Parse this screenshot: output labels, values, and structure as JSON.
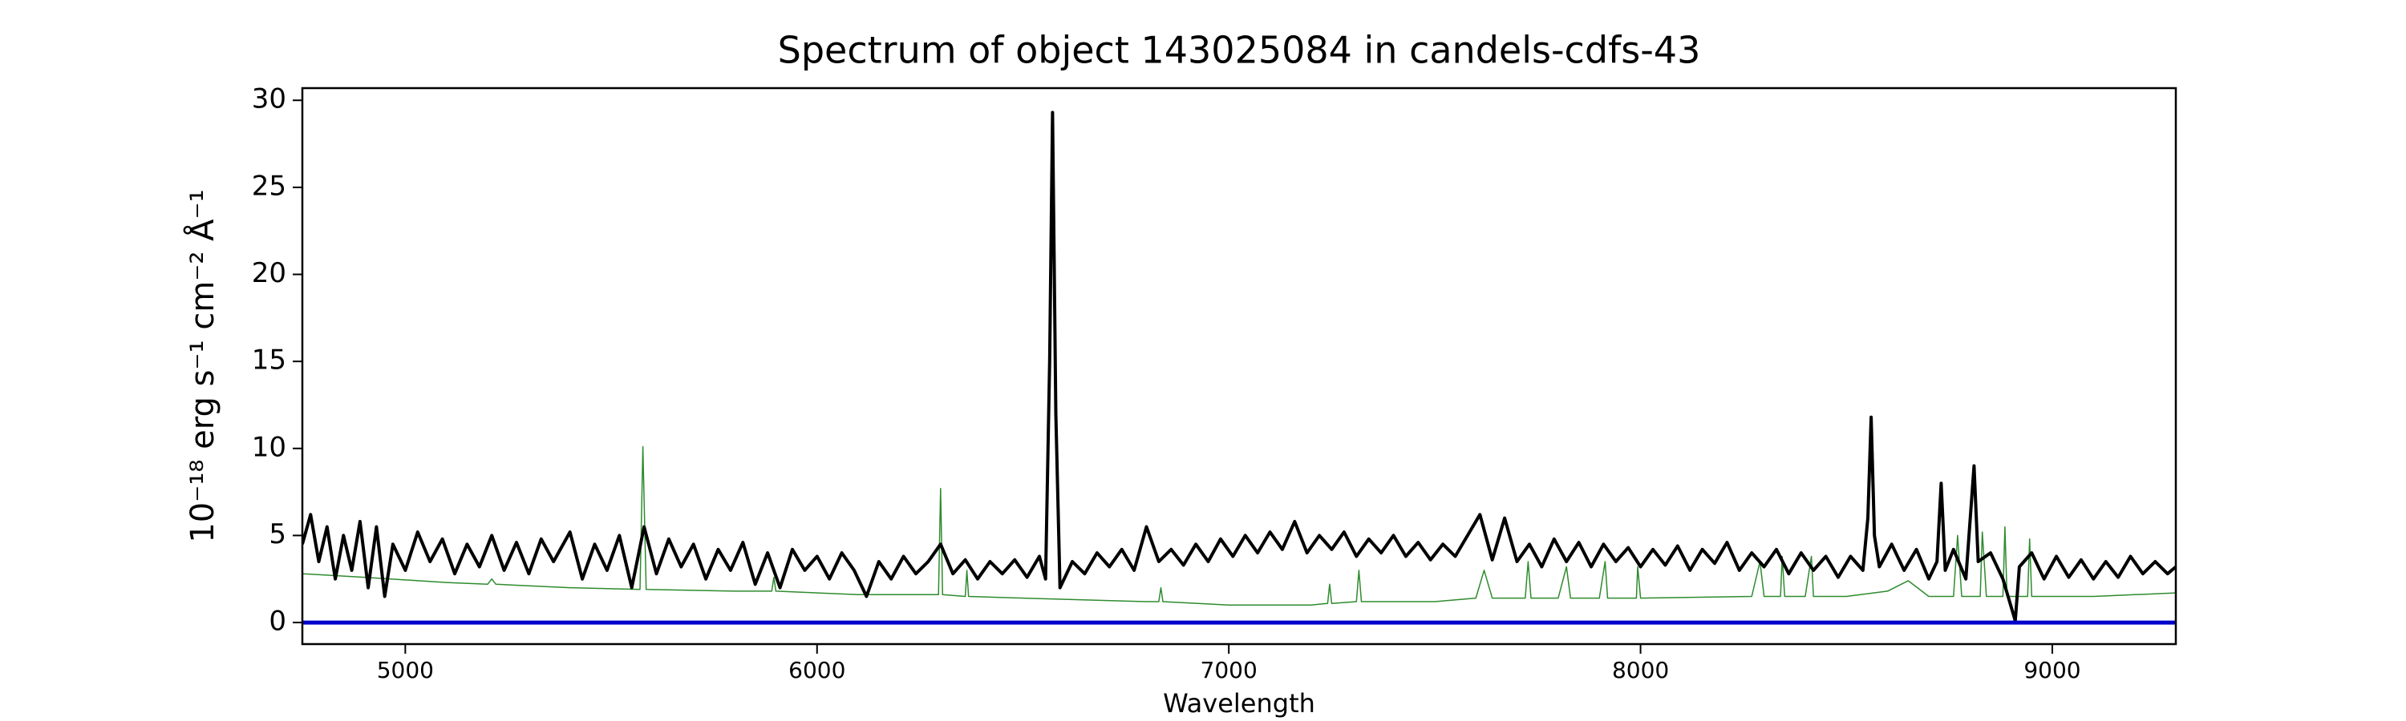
{
  "chart_data": {
    "type": "line",
    "title": "Spectrum of object 143025084 in candels-cdfs-43",
    "x_label": "Wavelength",
    "y_label": "10⁻¹⁸ erg s⁻¹ cm⁻² Å⁻¹",
    "xlim": [
      4750,
      9300
    ],
    "ylim": [
      -1.24,
      30.7
    ],
    "xticks": [
      5000,
      6000,
      7000,
      8000,
      9000
    ],
    "yticks": [
      0,
      5,
      10,
      15,
      20,
      25,
      30
    ],
    "grid": false,
    "series": [
      {
        "color": "#2e8b2e",
        "width": 1.5,
        "x": [
          4750,
          4900,
          5100,
          5200,
          5210,
          5220,
          5400,
          5570,
          5577,
          5585,
          5800,
          5890,
          5895,
          5900,
          6100,
          6295,
          6300,
          6305,
          6360,
          6364,
          6368,
          6500,
          6800,
          6830,
          6835,
          6840,
          7000,
          7200,
          7240,
          7245,
          7250,
          7310,
          7316,
          7322,
          7500,
          7600,
          7620,
          7640,
          7720,
          7727,
          7734,
          7800,
          7820,
          7830,
          7900,
          7914,
          7920,
          7990,
          7993,
          8000,
          8270,
          8290,
          8300,
          8340,
          8344,
          8350,
          8400,
          8415,
          8420,
          8500,
          8600,
          8650,
          8700,
          8760,
          8770,
          8780,
          8825,
          8830,
          8840,
          8880,
          8885,
          8890,
          8940,
          8945,
          8950,
          9100,
          9300
        ],
        "values": [
          2.8,
          2.6,
          2.3,
          2.2,
          2.5,
          2.2,
          2.0,
          1.9,
          10.1,
          1.9,
          1.8,
          1.8,
          2.6,
          1.8,
          1.6,
          1.6,
          7.7,
          1.6,
          1.5,
          3.0,
          1.5,
          1.4,
          1.2,
          1.2,
          2.0,
          1.2,
          1.0,
          1.0,
          1.1,
          2.2,
          1.1,
          1.2,
          3.0,
          1.2,
          1.2,
          1.4,
          3.0,
          1.4,
          1.4,
          3.5,
          1.4,
          1.4,
          3.2,
          1.4,
          1.4,
          3.5,
          1.4,
          1.4,
          3.2,
          1.4,
          1.5,
          3.5,
          1.5,
          1.5,
          3.8,
          1.5,
          1.5,
          3.8,
          1.5,
          1.5,
          1.8,
          2.4,
          1.5,
          1.5,
          5.0,
          1.5,
          1.5,
          5.2,
          1.5,
          1.5,
          5.5,
          1.5,
          1.5,
          4.8,
          1.5,
          1.5,
          1.7
        ]
      },
      {
        "color": "#000000",
        "width": 4,
        "x": [
          4750,
          4770,
          4790,
          4810,
          4830,
          4850,
          4870,
          4890,
          4910,
          4930,
          4950,
          4970,
          5000,
          5030,
          5060,
          5090,
          5120,
          5150,
          5180,
          5210,
          5240,
          5270,
          5300,
          5330,
          5360,
          5400,
          5430,
          5460,
          5490,
          5520,
          5550,
          5580,
          5610,
          5640,
          5670,
          5700,
          5730,
          5760,
          5790,
          5820,
          5850,
          5880,
          5910,
          5940,
          5970,
          6000,
          6030,
          6060,
          6090,
          6120,
          6150,
          6180,
          6210,
          6240,
          6270,
          6300,
          6330,
          6360,
          6390,
          6420,
          6450,
          6480,
          6510,
          6540,
          6555,
          6565,
          6572,
          6580,
          6590,
          6620,
          6650,
          6680,
          6710,
          6740,
          6770,
          6800,
          6830,
          6860,
          6890,
          6920,
          6950,
          6980,
          7010,
          7040,
          7070,
          7100,
          7130,
          7160,
          7190,
          7220,
          7250,
          7280,
          7310,
          7340,
          7370,
          7400,
          7430,
          7460,
          7490,
          7520,
          7550,
          7580,
          7610,
          7640,
          7670,
          7700,
          7730,
          7760,
          7790,
          7820,
          7850,
          7880,
          7910,
          7940,
          7970,
          8000,
          8030,
          8060,
          8090,
          8120,
          8150,
          8180,
          8210,
          8240,
          8270,
          8300,
          8330,
          8360,
          8390,
          8420,
          8450,
          8480,
          8510,
          8540,
          8552,
          8560,
          8568,
          8580,
          8610,
          8640,
          8670,
          8700,
          8720,
          8730,
          8740,
          8760,
          8790,
          8810,
          8820,
          8850,
          8880,
          8910,
          8920,
          8950,
          8980,
          9010,
          9040,
          9070,
          9100,
          9130,
          9160,
          9190,
          9220,
          9250,
          9280,
          9300
        ],
        "values": [
          4.5,
          6.2,
          3.5,
          5.5,
          2.5,
          5.0,
          3.0,
          5.8,
          2.0,
          5.5,
          1.5,
          4.5,
          3.0,
          5.2,
          3.5,
          4.8,
          2.8,
          4.5,
          3.2,
          5.0,
          3.0,
          4.6,
          2.8,
          4.8,
          3.5,
          5.2,
          2.5,
          4.5,
          3.0,
          5.0,
          2.0,
          5.5,
          2.8,
          4.8,
          3.2,
          4.5,
          2.5,
          4.2,
          3.0,
          4.6,
          2.2,
          4.0,
          2.0,
          4.2,
          3.0,
          3.8,
          2.5,
          4.0,
          3.0,
          1.5,
          3.5,
          2.5,
          3.8,
          2.8,
          3.5,
          4.5,
          2.8,
          3.6,
          2.5,
          3.5,
          2.8,
          3.6,
          2.6,
          3.8,
          2.5,
          15,
          29.3,
          12,
          2.0,
          3.5,
          2.8,
          4.0,
          3.2,
          4.2,
          3.0,
          5.5,
          3.5,
          4.2,
          3.3,
          4.5,
          3.5,
          4.8,
          3.8,
          5.0,
          4.0,
          5.2,
          4.2,
          5.8,
          4.0,
          5.0,
          4.2,
          5.2,
          3.8,
          4.8,
          4.0,
          5.0,
          3.8,
          4.6,
          3.6,
          4.5,
          3.8,
          5.0,
          6.2,
          3.6,
          6.0,
          3.5,
          4.5,
          3.2,
          4.8,
          3.5,
          4.6,
          3.2,
          4.5,
          3.5,
          4.3,
          3.2,
          4.2,
          3.3,
          4.4,
          3.0,
          4.2,
          3.4,
          4.6,
          3.0,
          4.0,
          3.2,
          4.2,
          2.8,
          4.0,
          3.0,
          3.8,
          2.6,
          3.8,
          3.0,
          6,
          11.8,
          5,
          3.2,
          4.5,
          3.0,
          4.2,
          2.5,
          3.5,
          8.0,
          3.0,
          4.2,
          2.5,
          9.0,
          3.5,
          4.0,
          2.5,
          0.1,
          3.2,
          4.0,
          2.5,
          3.8,
          2.6,
          3.6,
          2.5,
          3.5,
          2.6,
          3.8,
          2.8,
          3.5,
          2.8,
          3.2
        ]
      },
      {
        "color": "#0000cc",
        "width": 5,
        "x": [
          4750,
          9300
        ],
        "values": [
          0,
          0
        ]
      }
    ]
  }
}
